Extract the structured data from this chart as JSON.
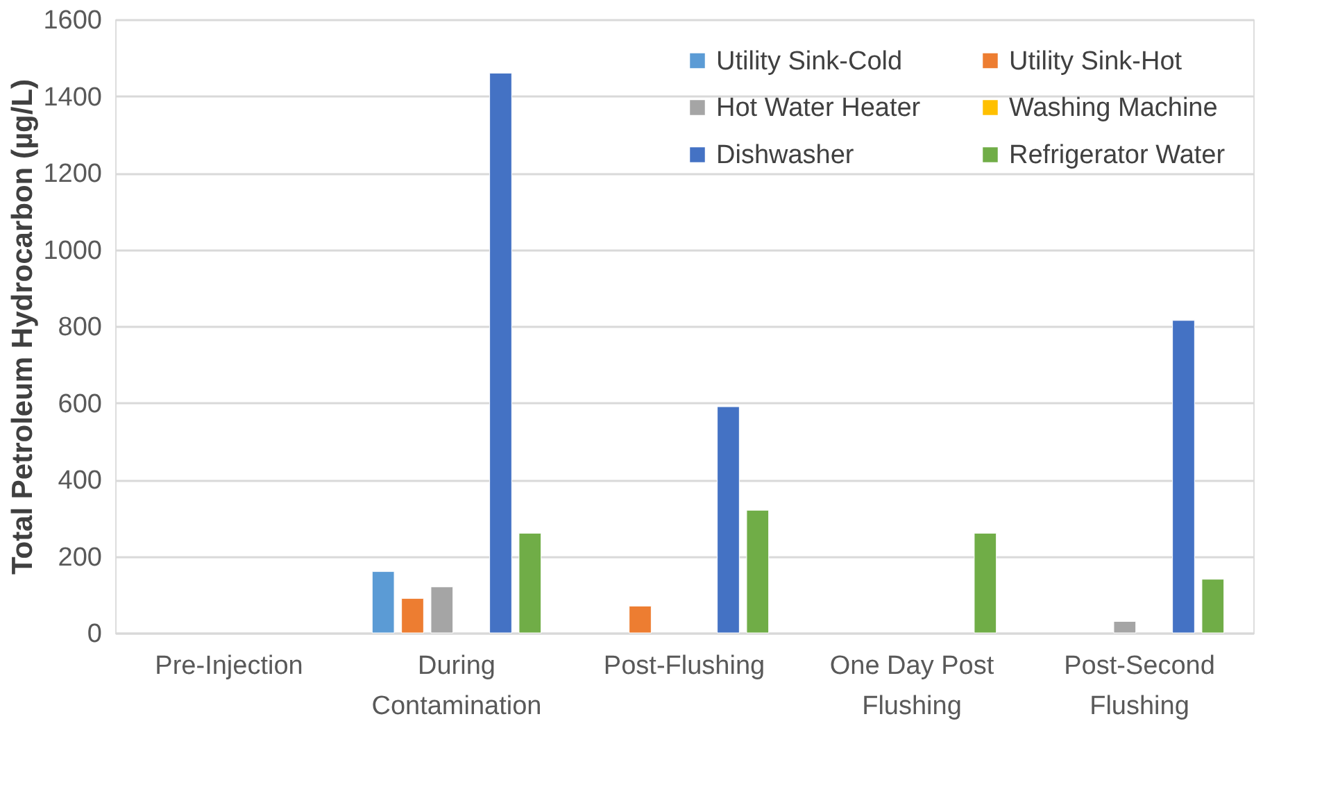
{
  "chart_data": {
    "type": "bar",
    "ylabel": "Total Petroleum Hydrocarbon  (µg/L)",
    "categories": [
      "Pre-Injection",
      "During\nContamination",
      "Post-Flushing",
      "One Day Post\nFlushing",
      "Post-Second\nFlushing"
    ],
    "series": [
      {
        "name": "Utility Sink-Cold",
        "color": "#5b9bd5",
        "values": [
          null,
          160,
          null,
          null,
          null
        ]
      },
      {
        "name": "Utility Sink-Hot",
        "color": "#ed7d31",
        "values": [
          null,
          90,
          70,
          null,
          null
        ]
      },
      {
        "name": "Hot Water Heater",
        "color": "#a5a5a5",
        "values": [
          null,
          120,
          null,
          null,
          30
        ]
      },
      {
        "name": "Washing Machine",
        "color": "#ffc000",
        "values": [
          null,
          null,
          null,
          null,
          null
        ]
      },
      {
        "name": "Dishwasher",
        "color": "#4472c4",
        "values": [
          null,
          1460,
          590,
          null,
          815
        ]
      },
      {
        "name": "Refrigerator Water",
        "color": "#70ad47",
        "values": [
          null,
          260,
          320,
          260,
          140
        ]
      }
    ],
    "ylim": [
      0,
      1600
    ],
    "yticks": [
      0,
      200,
      400,
      600,
      800,
      1000,
      1200,
      1400,
      1600
    ],
    "grid": "y",
    "legend": "top right"
  }
}
